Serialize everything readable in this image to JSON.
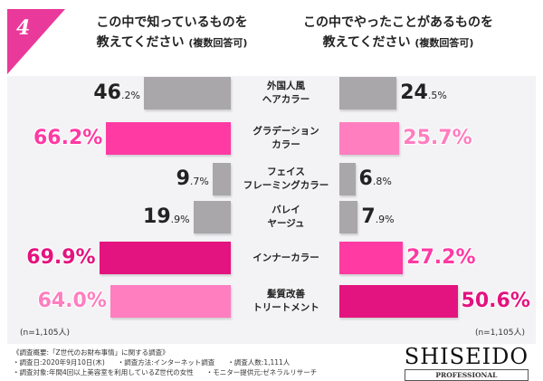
{
  "badge_number": "4",
  "left_title": {
    "line1": "この中で知っているものを",
    "line2": "教えてください",
    "note": "(複数回答可)"
  },
  "right_title": {
    "line1": "この中でやったことがあるものを",
    "line2": "教えてください",
    "note": "(複数回答可)"
  },
  "chart_data": {
    "type": "bar",
    "categories": [
      [
        "外国人風",
        "ヘアカラー"
      ],
      [
        "グラデーション",
        "カラー"
      ],
      [
        "フェイス",
        "フレーミングカラー"
      ],
      [
        "バレイ",
        "ヤージュ"
      ],
      [
        "インナーカラー"
      ],
      [
        "髪質改善",
        "トリートメント"
      ]
    ],
    "series": [
      {
        "name": "この中で知っているものを教えてください",
        "values": [
          46.2,
          66.2,
          9.7,
          19.9,
          69.9,
          64.0
        ],
        "labels": [
          [
            "46",
            ".2%"
          ],
          [
            "66.2%",
            ""
          ],
          [
            "9",
            ".7%"
          ],
          [
            "19",
            ".9%"
          ],
          [
            "69.9%",
            ""
          ],
          [
            "64.0%",
            ""
          ]
        ],
        "colors": [
          "#a9a7aa",
          "#ff3aa3",
          "#a9a7aa",
          "#a9a7aa",
          "#e3137f",
          "#ff7ec0"
        ]
      },
      {
        "name": "この中でやったことがあるものを教えてください",
        "values": [
          24.5,
          25.7,
          6.8,
          7.9,
          27.2,
          50.6
        ],
        "labels": [
          [
            "24",
            ".5%"
          ],
          [
            "25.7%",
            ""
          ],
          [
            "6",
            ".8%"
          ],
          [
            "7",
            ".9%"
          ],
          [
            "27.2%",
            ""
          ],
          [
            "50.6%",
            ""
          ]
        ],
        "colors": [
          "#a9a7aa",
          "#ff7ec0",
          "#a9a7aa",
          "#a9a7aa",
          "#ff3aa3",
          "#e3137f"
        ]
      }
    ]
  },
  "n_left": "(n=1,105人)",
  "n_right": "(n=1,105人)",
  "footer": {
    "title": "《調査概要:「Z世代のお財布事情」に関する調査》",
    "row1": [
      "・調査日:2020年9月10日(木)",
      "・調査方法:インターネット調査",
      "・調査人数:1,111人"
    ],
    "row2": [
      "・調査対象:年間4回以上美容室を利用しているZ世代の女性",
      "・モニター提供元:ゼネラルリサーチ"
    ]
  },
  "logo": {
    "wordmark": "SHISEIDO",
    "sub": "PROFESSIONAL"
  }
}
